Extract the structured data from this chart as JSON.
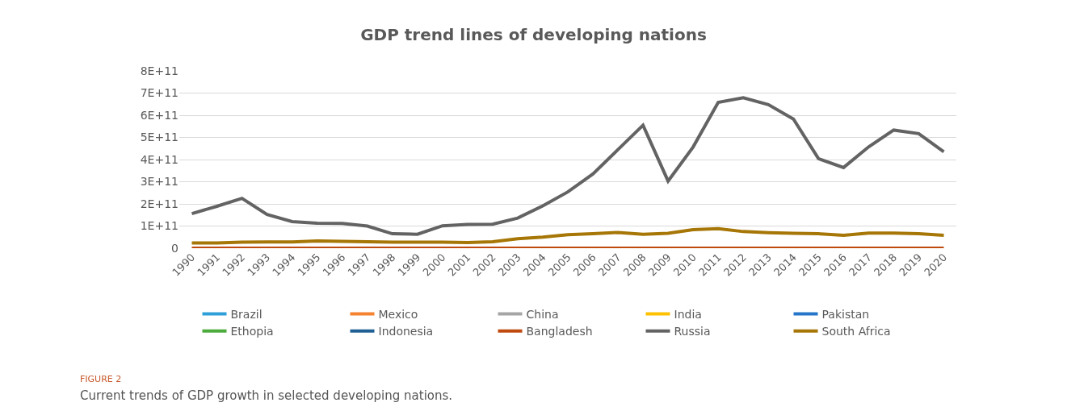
{
  "chart_data": {
    "type": "line",
    "title": "GDP trend lines of developing nations",
    "categories": [
      "1990",
      "1991",
      "1992",
      "1993",
      "1994",
      "1995",
      "1996",
      "1997",
      "1998",
      "1999",
      "2000",
      "2001",
      "2002",
      "2003",
      "2004",
      "2005",
      "2006",
      "2007",
      "2008",
      "2009",
      "2010",
      "2011",
      "2012",
      "2013",
      "2014",
      "2015",
      "2016",
      "2017",
      "2018",
      "2019",
      "2020"
    ],
    "series": [
      {
        "name": "Brazil",
        "color": "#2e9fd8",
        "values": [
          null,
          null,
          null,
          null,
          null,
          null,
          null,
          null,
          null,
          null,
          null,
          null,
          null,
          null,
          null,
          null,
          null,
          null,
          null,
          null,
          null,
          null,
          null,
          null,
          null,
          null,
          null,
          null,
          null,
          null,
          null
        ]
      },
      {
        "name": "Mexico",
        "color": "#f5822f",
        "values": [
          null,
          null,
          null,
          null,
          null,
          null,
          null,
          null,
          null,
          null,
          null,
          null,
          null,
          null,
          null,
          null,
          null,
          null,
          null,
          null,
          null,
          null,
          null,
          null,
          null,
          null,
          null,
          null,
          null,
          null,
          null
        ]
      },
      {
        "name": "China",
        "color": "#a5a5a5",
        "values": [
          null,
          null,
          null,
          null,
          null,
          null,
          null,
          null,
          null,
          null,
          null,
          null,
          null,
          null,
          null,
          null,
          null,
          null,
          null,
          null,
          null,
          null,
          null,
          null,
          null,
          null,
          null,
          null,
          null,
          null,
          null
        ]
      },
      {
        "name": "India",
        "color": "#ffc000",
        "values": [
          null,
          null,
          null,
          null,
          null,
          null,
          null,
          null,
          null,
          null,
          null,
          null,
          null,
          null,
          null,
          null,
          null,
          null,
          null,
          null,
          null,
          null,
          null,
          null,
          null,
          null,
          null,
          null,
          null,
          null,
          null
        ]
      },
      {
        "name": "Pakistan",
        "color": "#2576c8",
        "values": [
          null,
          null,
          null,
          null,
          null,
          null,
          null,
          null,
          null,
          null,
          null,
          null,
          null,
          null,
          null,
          null,
          null,
          null,
          null,
          null,
          null,
          null,
          null,
          null,
          null,
          null,
          null,
          null,
          null,
          null,
          null
        ]
      },
      {
        "name": "Ethopia",
        "color": "#4cab3c",
        "values": [
          null,
          null,
          null,
          null,
          null,
          null,
          null,
          null,
          null,
          null,
          null,
          null,
          null,
          null,
          null,
          null,
          null,
          null,
          null,
          null,
          null,
          null,
          null,
          null,
          null,
          null,
          null,
          null,
          null,
          null,
          null
        ]
      },
      {
        "name": "Indonesia",
        "color": "#1f5f94",
        "values": [
          null,
          null,
          null,
          null,
          null,
          null,
          null,
          null,
          null,
          null,
          null,
          null,
          null,
          null,
          null,
          null,
          null,
          null,
          null,
          null,
          null,
          null,
          null,
          null,
          null,
          null,
          null,
          null,
          null,
          null,
          null
        ]
      },
      {
        "name": "Bangladesh",
        "color": "#c0490d",
        "values": [
          0,
          0,
          0,
          0,
          0,
          0,
          0,
          0,
          0,
          0,
          0,
          0,
          0,
          0,
          0,
          0,
          0,
          0,
          0,
          0,
          0,
          0,
          0,
          0,
          0,
          0,
          0,
          0,
          0,
          0,
          0
        ]
      },
      {
        "name": "Russia",
        "color": "#636363",
        "values": [
          156000000000.0,
          189000000000.0,
          225000000000.0,
          152000000000.0,
          120000000000.0,
          113000000000.0,
          112000000000.0,
          100000000000.0,
          65000000000.0,
          63000000000.0,
          101000000000.0,
          107000000000.0,
          108000000000.0,
          136000000000.0,
          191000000000.0,
          254000000000.0,
          335000000000.0,
          445000000000.0,
          555000000000.0,
          303000000000.0,
          457000000000.0,
          658000000000.0,
          679000000000.0,
          648000000000.0,
          583000000000.0,
          404000000000.0,
          364000000000.0,
          457000000000.0,
          533000000000.0,
          517000000000.0,
          435000000000.0
        ]
      },
      {
        "name": "South Africa",
        "color": "#a67606",
        "values": [
          24000000000.0,
          24000000000.0,
          27000000000.0,
          28000000000.0,
          28000000000.0,
          33000000000.0,
          31000000000.0,
          29000000000.0,
          27000000000.0,
          27000000000.0,
          27000000000.0,
          25000000000.0,
          29000000000.0,
          43000000000.0,
          50000000000.0,
          61000000000.0,
          65000000000.0,
          71000000000.0,
          63000000000.0,
          67000000000.0,
          84000000000.0,
          88000000000.0,
          75000000000.0,
          70000000000.0,
          67000000000.0,
          65000000000.0,
          58000000000.0,
          68000000000.0,
          68000000000.0,
          65000000000.0,
          58000000000.0
        ]
      }
    ],
    "ylim": [
      0,
      800000000000.0
    ],
    "yticks": [
      0,
      {
        "value": 100000000000.0,
        "label": "1E+11"
      },
      {
        "value": 200000000000.0,
        "label": "2E+11"
      },
      {
        "value": 300000000000.0,
        "label": "3E+11"
      },
      {
        "value": 400000000000.0,
        "label": "4E+11"
      },
      {
        "value": 500000000000.0,
        "label": "5E+11"
      },
      {
        "value": 600000000000.0,
        "label": "6E+11"
      },
      {
        "value": 700000000000.0,
        "label": "7E+11"
      },
      {
        "value": 800000000000.0,
        "label": "8E+11"
      }
    ],
    "grid": "y",
    "legend": "bottom",
    "marker": "none",
    "line_style": "solid",
    "annotations": [
      "FIGURE 2",
      "Current trends of GDP growth in selected developing nations."
    ]
  }
}
